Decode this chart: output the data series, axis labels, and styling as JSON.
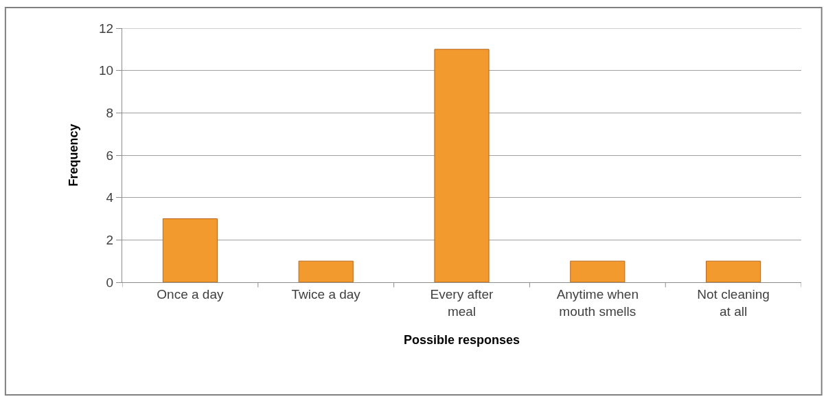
{
  "chart_data": {
    "type": "bar",
    "xlabel": "Possible responses",
    "ylabel": "Frequency",
    "categories": [
      "Once a day",
      "Twice a day",
      "Every after meal",
      "Anytime when mouth smells",
      "Not cleaning at all"
    ],
    "values": [
      3,
      1,
      11,
      1,
      1
    ],
    "color": "#f39a2e",
    "ylim": [
      0,
      12
    ],
    "yticks": [
      0,
      2,
      4,
      6,
      8,
      10,
      12
    ],
    "grid": "y",
    "legend": false
  }
}
